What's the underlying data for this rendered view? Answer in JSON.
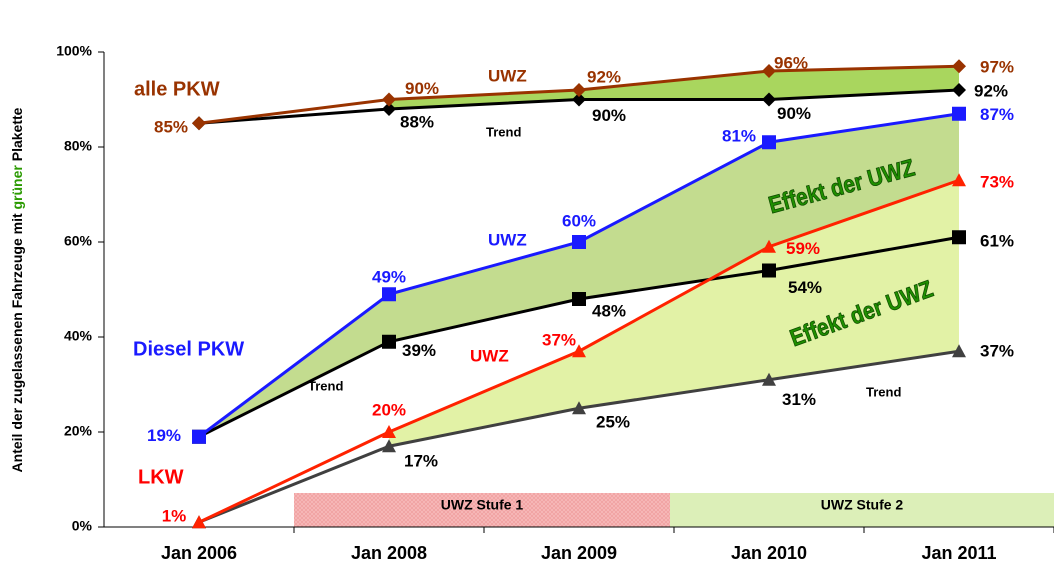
{
  "chart_data": {
    "type": "line",
    "y_label_parts": [
      "Anteil der zugelassenen Fahrzeuge mit ",
      "grüner",
      " Plakette"
    ],
    "categories": [
      "Jan 2006",
      "Jan 2008",
      "Jan 2009",
      "Jan 2010",
      "Jan 2011"
    ],
    "ylim": [
      0,
      100
    ],
    "yticks": [
      {
        "value": 0,
        "label": "0%"
      },
      {
        "value": 20,
        "label": "20%"
      },
      {
        "value": 40,
        "label": "40%"
      },
      {
        "value": 60,
        "label": "60%"
      },
      {
        "value": 80,
        "label": "80%"
      },
      {
        "value": 100,
        "label": "100%"
      }
    ],
    "series": [
      {
        "color": "#993300",
        "marker": "diamond",
        "values": [
          85,
          90,
          92,
          96,
          97
        ],
        "value_labels": [
          "85%",
          "90%",
          "92%",
          "96%",
          "97%"
        ]
      },
      {
        "color": "#000000",
        "marker": "diamond",
        "values": [
          85,
          88,
          90,
          90,
          92
        ],
        "value_labels": [
          null,
          "88%",
          "90%",
          "90%",
          "92%"
        ]
      },
      {
        "color": "#1a1aff",
        "marker": "square",
        "values": [
          19,
          49,
          60,
          81,
          87
        ],
        "value_labels": [
          "19%",
          "49%",
          "60%",
          "81%",
          "87%"
        ]
      },
      {
        "color": "#000000",
        "marker": "square",
        "values": [
          19,
          39,
          48,
          54,
          61
        ],
        "value_labels": [
          null,
          "39%",
          "48%",
          "54%",
          "61%"
        ]
      },
      {
        "color": "#ff2200",
        "marker": "triangle",
        "values": [
          1,
          20,
          37,
          59,
          73
        ],
        "value_labels": [
          "1%",
          "20%",
          "37%",
          "59%",
          "73%"
        ]
      },
      {
        "color": "#404040",
        "marker": "triangle",
        "values": [
          1,
          17,
          25,
          31,
          37
        ],
        "value_labels": [
          null,
          "17%",
          "25%",
          "31%",
          "37%"
        ]
      }
    ],
    "annotations": [
      "alle PKW",
      "Diesel PKW",
      "LKW",
      "UWZ",
      "UWZ",
      "UWZ",
      "Trend",
      "Trend",
      "Trend",
      "Effekt der UWZ",
      "Effekt der UWZ",
      "UWZ Stufe 1",
      "UWZ Stufe 2"
    ]
  }
}
